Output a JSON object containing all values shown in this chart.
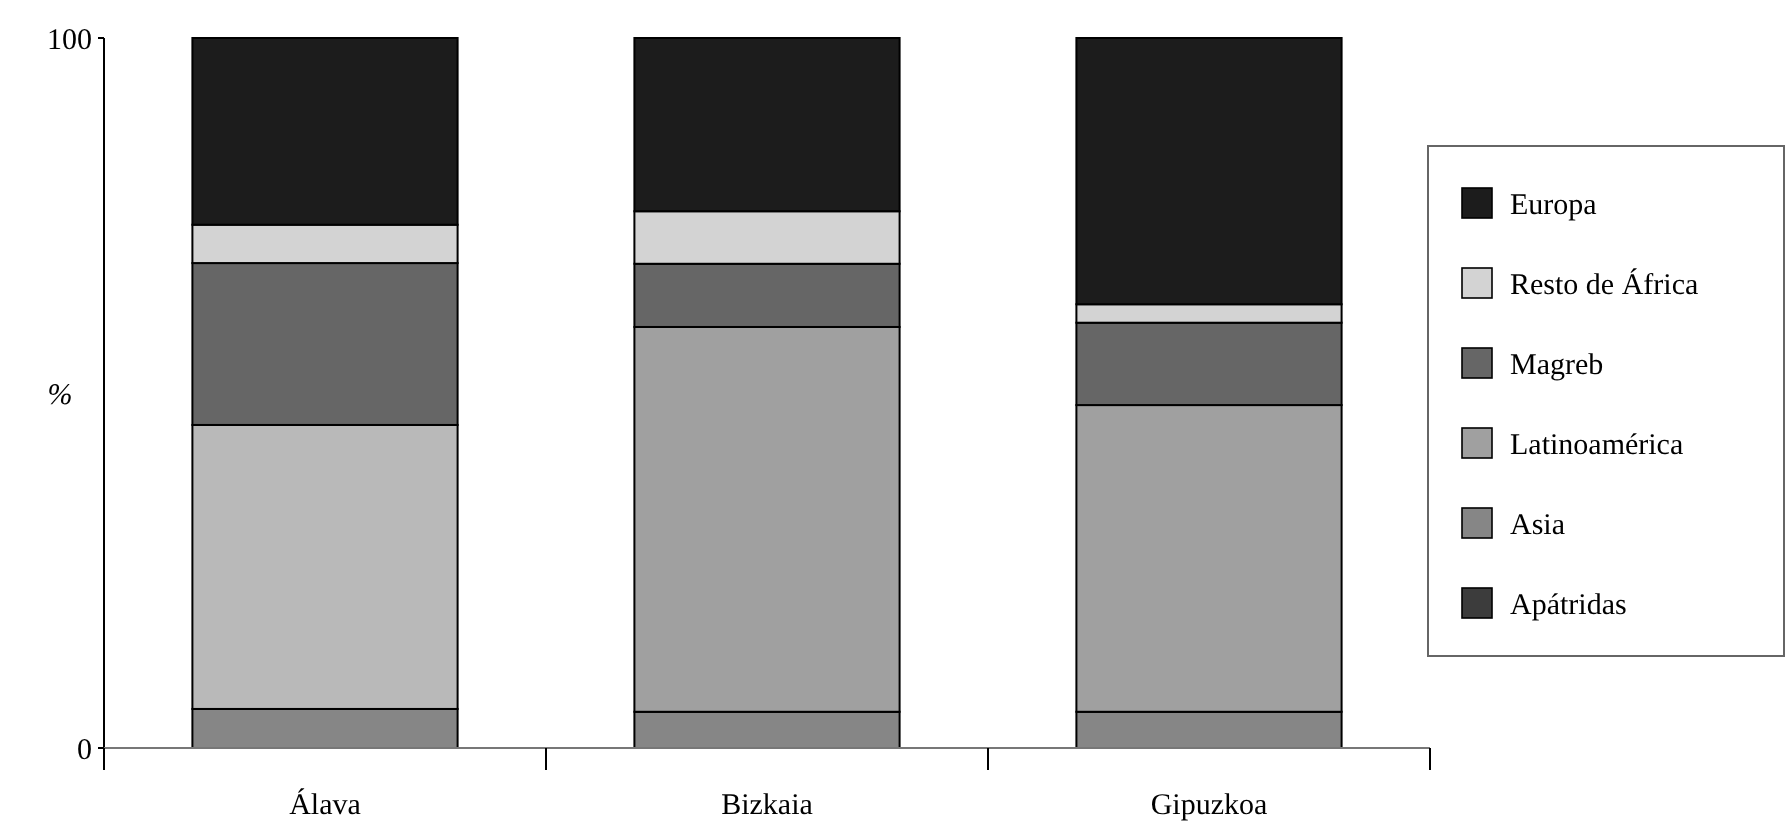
{
  "chart_data": {
    "type": "bar",
    "stacked": true,
    "ylabel": "%",
    "categories": [
      "Álava",
      "Bizkaia",
      "Gipuzkoa"
    ],
    "ylim": [
      0,
      100
    ],
    "yticks": [
      0,
      100
    ],
    "legend": "right",
    "series": [
      {
        "name": "Apátridas",
        "color": "#3c3c3c",
        "values": [
          0,
          0,
          0
        ]
      },
      {
        "name": "Asia",
        "color": "#868686",
        "values": [
          5.5,
          5.1,
          5.1
        ]
      },
      {
        "name": "Latinoamérica",
        "color": "#a0a0a0",
        "colors": [
          "#b9b9b9",
          "#a0a0a0",
          "#a0a0a0"
        ],
        "values": [
          40,
          54.2,
          43.2
        ]
      },
      {
        "name": "Magreb",
        "color": "#666666",
        "values": [
          22.8,
          8.9,
          11.6
        ]
      },
      {
        "name": "Resto de África",
        "color": "#d3d3d3",
        "values": [
          5.4,
          7.4,
          2.6
        ]
      },
      {
        "name": "Europa",
        "color": "#1c1c1c",
        "values": [
          26.3,
          24.4,
          37.5
        ]
      }
    ]
  }
}
